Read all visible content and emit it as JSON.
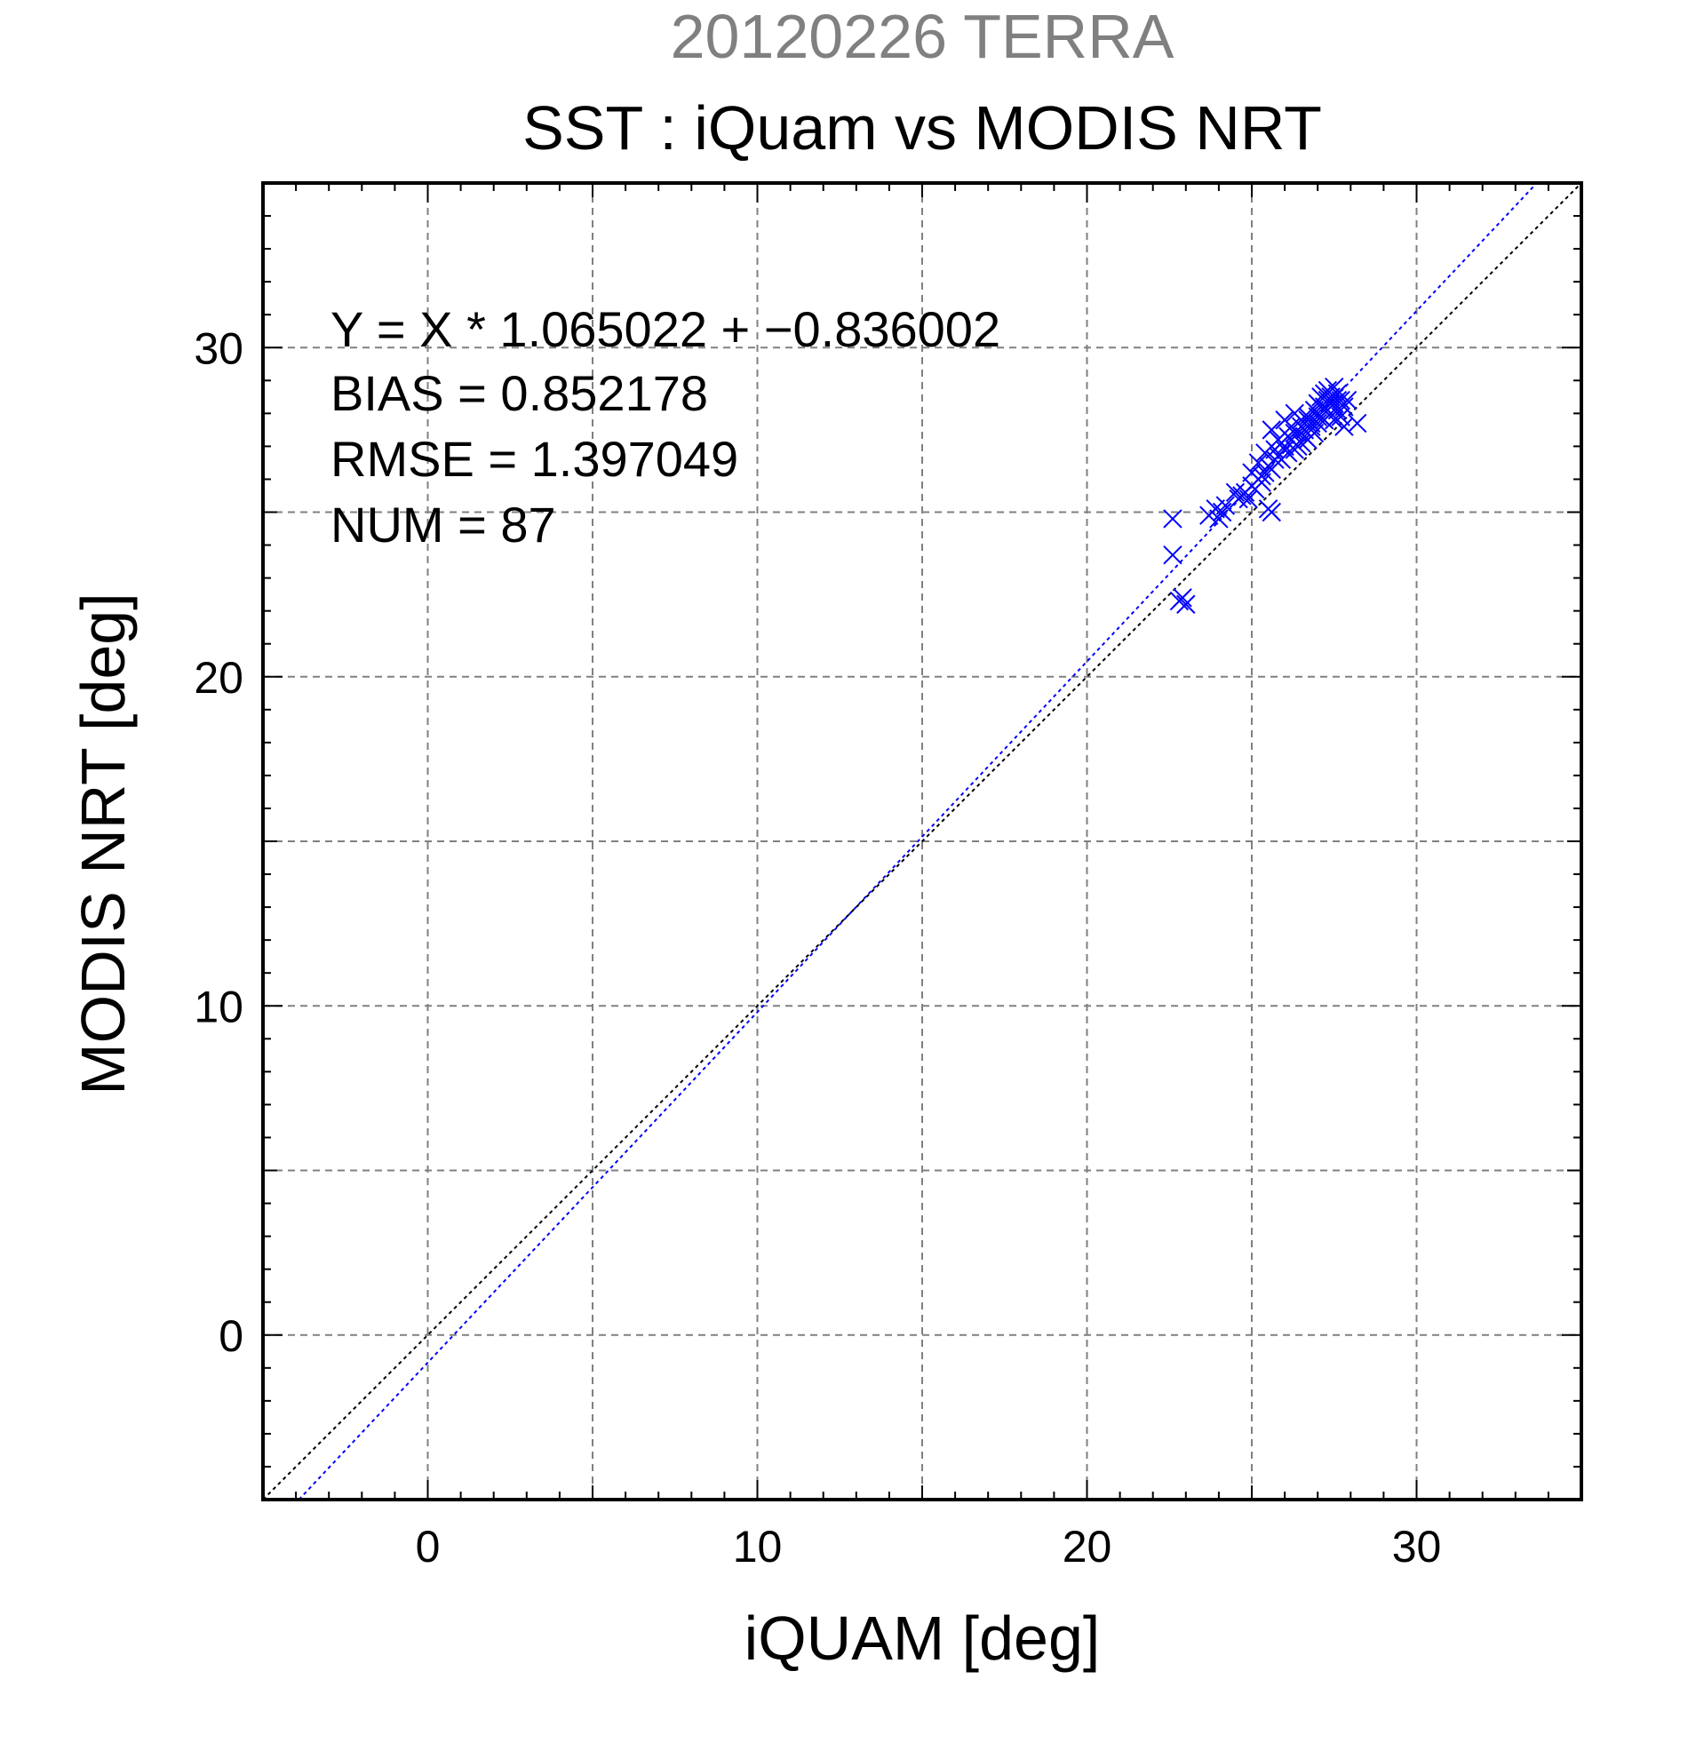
{
  "chart_data": {
    "type": "scatter",
    "header": "20120226 TERRA",
    "title": "SST : iQuam vs MODIS NRT",
    "xlabel": "iQUAM [deg]",
    "ylabel": "MODIS NRT [deg]",
    "xlim": [
      -5,
      35
    ],
    "ylim": [
      -5,
      35
    ],
    "xticks": [
      0,
      10,
      20,
      30
    ],
    "yticks": [
      0,
      10,
      20,
      30
    ],
    "grid": true,
    "colors": {
      "points": "#0000ff",
      "fit_line": "#0000ff",
      "identity_line": "#000000",
      "header": "#808080"
    },
    "annotations": [
      "Y = X * 1.065022 + −0.836002",
      "BIAS = 0.852178",
      "RMSE = 1.397049",
      "NUM = 87"
    ],
    "fit": {
      "slope": 1.065022,
      "intercept": -0.836002
    },
    "identity": {
      "slope": 1,
      "intercept": 0
    },
    "points": [
      [
        22.6,
        24.8
      ],
      [
        22.6,
        23.7
      ],
      [
        22.9,
        22.4
      ],
      [
        23.0,
        22.2
      ],
      [
        22.8,
        22.3
      ],
      [
        23.7,
        24.9
      ],
      [
        23.9,
        25.1
      ],
      [
        24.1,
        25.0
      ],
      [
        24.0,
        24.8
      ],
      [
        24.2,
        25.2
      ],
      [
        24.5,
        25.6
      ],
      [
        24.7,
        25.5
      ],
      [
        24.9,
        25.4
      ],
      [
        25.0,
        26.2
      ],
      [
        25.1,
        25.7
      ],
      [
        25.2,
        26.5
      ],
      [
        25.3,
        25.9
      ],
      [
        25.5,
        25.1
      ],
      [
        25.6,
        25.0
      ],
      [
        25.4,
        26.8
      ],
      [
        25.6,
        26.3
      ],
      [
        25.7,
        26.9
      ],
      [
        25.8,
        27.2
      ],
      [
        25.6,
        27.5
      ],
      [
        25.9,
        26.6
      ],
      [
        26.0,
        27.0
      ],
      [
        26.0,
        27.8
      ],
      [
        26.1,
        27.3
      ],
      [
        26.2,
        27.6
      ],
      [
        26.3,
        26.9
      ],
      [
        26.3,
        28.0
      ],
      [
        26.4,
        27.4
      ],
      [
        26.5,
        27.1
      ],
      [
        26.5,
        27.8
      ],
      [
        26.6,
        27.5
      ],
      [
        26.7,
        27.2
      ],
      [
        26.7,
        27.9
      ],
      [
        26.8,
        27.6
      ],
      [
        26.9,
        28.1
      ],
      [
        27.0,
        27.7
      ],
      [
        27.0,
        28.3
      ],
      [
        27.1,
        28.5
      ],
      [
        27.1,
        27.9
      ],
      [
        27.2,
        28.6
      ],
      [
        27.2,
        28.2
      ],
      [
        27.3,
        28.7
      ],
      [
        27.3,
        28.4
      ],
      [
        27.4,
        28.0
      ],
      [
        27.4,
        28.5
      ],
      [
        27.5,
        28.3
      ],
      [
        27.5,
        28.8
      ],
      [
        27.6,
        28.1
      ],
      [
        27.6,
        28.6
      ],
      [
        27.7,
        28.4
      ],
      [
        27.7,
        27.9
      ],
      [
        27.8,
        28.2
      ],
      [
        27.9,
        28.4
      ],
      [
        28.2,
        27.7
      ],
      [
        27.8,
        27.6
      ],
      [
        27.5,
        27.8
      ],
      [
        25.2,
        26.0
      ],
      [
        25.4,
        26.2
      ],
      [
        25.0,
        25.8
      ],
      [
        24.8,
        25.6
      ],
      [
        24.6,
        25.4
      ],
      [
        26.1,
        26.8
      ],
      [
        26.4,
        27.0
      ],
      [
        26.2,
        27.2
      ],
      [
        25.9,
        27.1
      ],
      [
        25.7,
        26.6
      ],
      [
        26.6,
        27.3
      ],
      [
        26.9,
        27.4
      ],
      [
        27.0,
        27.9
      ],
      [
        27.2,
        27.8
      ],
      [
        27.4,
        28.3
      ],
      [
        27.6,
        28.4
      ],
      [
        27.3,
        28.1
      ],
      [
        27.1,
        28.2
      ],
      [
        26.8,
        27.7
      ],
      [
        26.5,
        27.6
      ],
      [
        25.5,
        26.4
      ],
      [
        25.3,
        26.1
      ],
      [
        25.8,
        26.7
      ],
      [
        26.0,
        26.9
      ],
      [
        26.3,
        27.4
      ],
      [
        26.7,
        27.8
      ],
      [
        27.0,
        28.0
      ]
    ]
  }
}
